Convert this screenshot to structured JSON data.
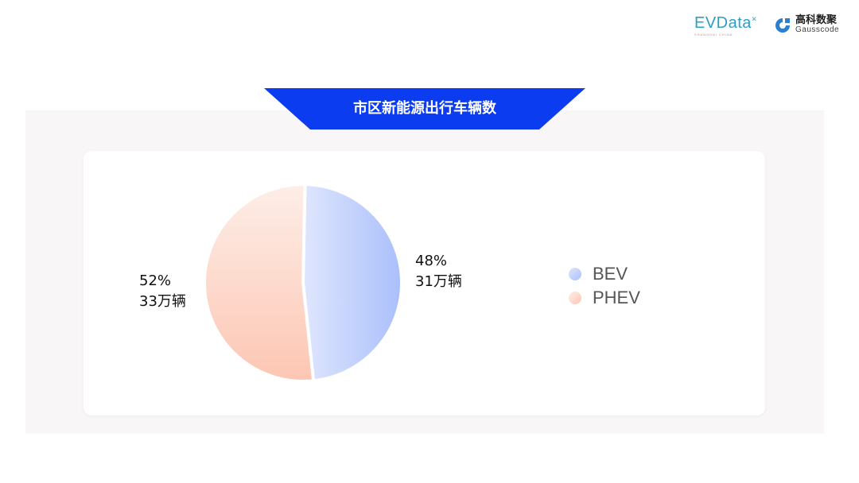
{
  "logos": {
    "evdata": "EVData",
    "evdata_sub": "SHANGHAI CHINA",
    "gausscode_cn": "高科数聚",
    "gausscode_en": "Gausscode"
  },
  "title": "市区新能源出行车辆数",
  "chart_data": {
    "type": "pie",
    "title": "市区新能源出行车辆数",
    "slices": [
      {
        "name": "BEV",
        "percent": 48,
        "value_label": "31万辆",
        "percent_label": "48%",
        "color_start": "#dfe6fd",
        "color_end": "#aabffb"
      },
      {
        "name": "PHEV",
        "percent": 52,
        "value_label": "33万辆",
        "percent_label": "52%",
        "color_start": "#fdeee8",
        "color_end": "#fdc6b3"
      }
    ],
    "legend": "right"
  },
  "colors": {
    "banner": "#0b3cf0",
    "panel": "#f8f6f6"
  }
}
